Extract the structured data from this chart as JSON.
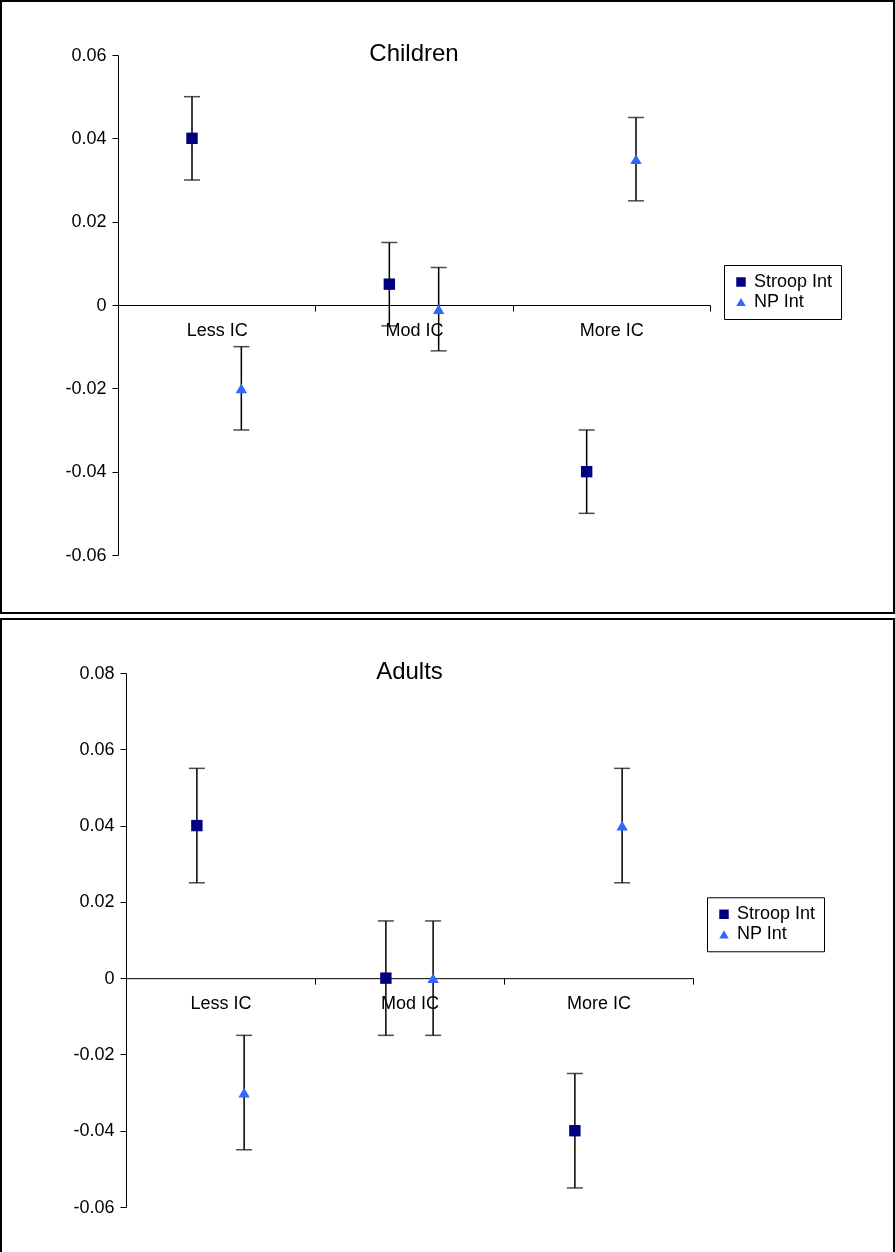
{
  "chart_data": [
    {
      "type": "scatter",
      "title": "Children",
      "categories": [
        "Less IC",
        "Mod IC",
        "More IC"
      ],
      "series": [
        {
          "name": "Stroop Int",
          "color": "#000080",
          "marker": "square",
          "values": [
            0.04,
            0.005,
            -0.04
          ],
          "errors": [
            0.01,
            0.01,
            0.01
          ]
        },
        {
          "name": "NP Int",
          "color": "#3366ff",
          "marker": "triangle",
          "values": [
            -0.02,
            -0.001,
            0.035
          ],
          "errors": [
            0.01,
            0.01,
            0.01
          ]
        }
      ],
      "ylim": [
        -0.06,
        0.06
      ],
      "yticks": [
        -0.06,
        -0.04,
        -0.02,
        0,
        0.02,
        0.04,
        0.06
      ],
      "grid": false,
      "legend": "right"
    },
    {
      "type": "scatter",
      "title": "Adults",
      "categories": [
        "Less IC",
        "Mod IC",
        "More IC"
      ],
      "series": [
        {
          "name": "Stroop Int",
          "color": "#000080",
          "marker": "square",
          "values": [
            0.04,
            0,
            -0.04
          ],
          "errors": [
            0.015,
            0.015,
            0.015
          ]
        },
        {
          "name": "NP Int",
          "color": "#3366ff",
          "marker": "triangle",
          "values": [
            -0.03,
            0,
            0.04
          ],
          "errors": [
            0.015,
            0.015,
            0.015
          ]
        }
      ],
      "ylim": [
        -0.06,
        0.08
      ],
      "yticks": [
        -0.06,
        -0.04,
        -0.02,
        0,
        0.02,
        0.04,
        0.06,
        0.08
      ],
      "grid": false,
      "legend": "right"
    }
  ]
}
